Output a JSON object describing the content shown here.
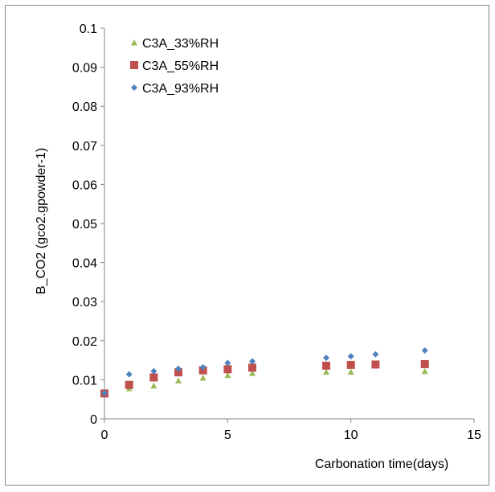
{
  "chart_data": {
    "type": "scatter",
    "title": "",
    "xlabel": "Carbonation time(days)",
    "ylabel": "B_CO2  (gco2.gpowder-1)",
    "xlim": [
      0,
      15
    ],
    "ylim": [
      0,
      0.1
    ],
    "xticks": [
      0,
      5,
      10,
      15
    ],
    "xtick_labels": [
      "0",
      "5",
      "10",
      "15"
    ],
    "yticks": [
      0,
      0.01,
      0.02,
      0.03,
      0.04,
      0.05,
      0.06,
      0.07,
      0.08,
      0.09,
      0.1
    ],
    "ytick_labels": [
      "0",
      "0.01",
      "0.02",
      "0.03",
      "0.04",
      "0.05",
      "0.06",
      "0.07",
      "0.08",
      "0.09",
      "0.1"
    ],
    "grid": false,
    "legend_position": "top-left",
    "series": [
      {
        "name": "C3A_33%RH",
        "marker": "triangle",
        "color": "#9bbb59",
        "x": [
          0,
          1,
          2,
          3,
          4,
          5,
          6,
          9,
          10,
          13
        ],
        "y": [
          0.0063,
          0.0078,
          0.0085,
          0.0098,
          0.0105,
          0.0112,
          0.0117,
          0.012,
          0.012,
          0.0122
        ]
      },
      {
        "name": "C3A_55%RH",
        "marker": "square",
        "color": "#c0504d",
        "x": [
          0,
          1,
          2,
          3,
          4,
          5,
          6,
          9,
          10,
          11,
          13
        ],
        "y": [
          0.0065,
          0.0087,
          0.0106,
          0.0119,
          0.0124,
          0.0127,
          0.0131,
          0.0136,
          0.0138,
          0.0139,
          0.014
        ]
      },
      {
        "name": "C3A_93%RH",
        "marker": "diamond",
        "color": "#4f81bd",
        "x": [
          0,
          1,
          2,
          3,
          4,
          5,
          6,
          9,
          10,
          11,
          13
        ],
        "y": [
          0.0066,
          0.0114,
          0.0122,
          0.0128,
          0.0132,
          0.0143,
          0.0147,
          0.0156,
          0.016,
          0.0165,
          0.0175
        ]
      }
    ]
  }
}
